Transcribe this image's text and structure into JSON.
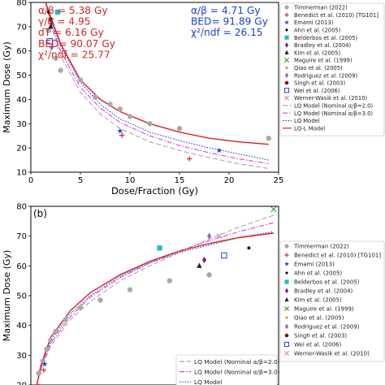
{
  "chart_data": [
    {
      "type": "scatter",
      "panel_label": "",
      "xlabel": "Dose/Fraction (Gy)",
      "ylabel": "Maximum Dose (Gy)",
      "xlim": [
        0,
        25
      ],
      "ylim": [
        10,
        80
      ],
      "xticks": [
        0,
        5,
        10,
        15,
        20,
        25
      ],
      "yticks": [
        10,
        20,
        30,
        40,
        50,
        60,
        70,
        80
      ],
      "x_axis_visible": true,
      "grid": false,
      "legend_position": "right",
      "annotations_left": [
        "α/β = 5.38 Gy",
        "γ/α = 4.95",
        "dT = 6.16 Gy",
        "BED= 90.07 Gy",
        "χ²/ndf = 25.77"
      ],
      "annotations_right": [
        "α/β = 4.71 Gy",
        "BED= 91.89 Gy",
        "χ²/ndf = 26.15"
      ],
      "annotation_colors": {
        "left": "#d62728",
        "right": "#1f3fd6"
      },
      "series": [
        {
          "name": "Timmerman (2022)",
          "marker": "circle",
          "color": "#a9a9a9",
          "points": [
            [
              1.8,
              68.4
            ],
            [
              2.5,
              57
            ],
            [
              3,
              52
            ],
            [
              5,
              48
            ],
            [
              6.5,
              41
            ],
            [
              8,
              38
            ],
            [
              9,
              36
            ],
            [
              10,
              33
            ],
            [
              12,
              30
            ],
            [
              15,
              28
            ],
            [
              24,
              24
            ]
          ]
        },
        {
          "name": "Benedict et al. (2010) [TG101]",
          "marker": "plus",
          "color": "#d62728",
          "points": [
            [
              9.2,
              25.2
            ],
            [
              16,
              15.5
            ]
          ]
        },
        {
          "name": "Emami (2013)",
          "marker": "star",
          "color": "#1f3fd6",
          "points": [
            [
              9,
              27
            ],
            [
              19,
              19
            ]
          ]
        },
        {
          "name": "Ahn et al. (2005)",
          "marker": "dot",
          "color": "#000000",
          "points": [
            [
              1.8,
              76
            ]
          ]
        },
        {
          "name": "Belderbos et al. (2005)",
          "marker": "square",
          "color": "#20c0c0",
          "points": [
            [
              2.7,
              76
            ]
          ]
        },
        {
          "name": "Bradley et al. (2004)",
          "marker": "diamond",
          "color": "#8b1a8b",
          "points": [
            [
              2.1,
              71.5
            ]
          ]
        },
        {
          "name": "Kim et al. (2005)",
          "marker": "triangle",
          "color": "#222222",
          "points": [
            [
              2,
              70
            ]
          ]
        },
        {
          "name": "Maguire et al. (1999)",
          "marker": "x",
          "color": "#2ca02c",
          "points": []
        },
        {
          "name": "Qiao et al. (2005)",
          "marker": "dot",
          "color": "#c8a000",
          "points": []
        },
        {
          "name": "Rodriguez et al. (2009)",
          "marker": "diamond",
          "color": "#9467bd",
          "points": [
            [
              2.1,
              61.5
            ]
          ]
        },
        {
          "name": "Singh et al. (2003)",
          "marker": "pentagon",
          "color": "#7f1010",
          "points": [
            [
              2,
              73
            ]
          ]
        },
        {
          "name": "Wei et al. (2006)",
          "marker": "open-square",
          "color": "#1f3fd6",
          "points": [
            [
              1.9,
              64
            ]
          ]
        },
        {
          "name": "Werner-Wasik et al. (2010)",
          "marker": "x",
          "color": "#e377c2",
          "points": []
        }
      ],
      "curves": [
        {
          "name": "LQ Model (Nominal α/β=2.0)",
          "style": "dashed",
          "color": "#aaaaaa",
          "points": [
            [
              1.5,
              80
            ],
            [
              2,
              71
            ],
            [
              3,
              58
            ],
            [
              5,
              43
            ],
            [
              7,
              34
            ],
            [
              9,
              28
            ],
            [
              12,
              22.5
            ],
            [
              15,
              19
            ],
            [
              18,
              16
            ],
            [
              21,
              13.5
            ],
            [
              24,
              11.5
            ]
          ]
        },
        {
          "name": "LQ Model (Nominal α/β=3.0)",
          "style": "dashdot",
          "color": "#e040e0",
          "points": [
            [
              1.5,
              80
            ],
            [
              2,
              72
            ],
            [
              3,
              60
            ],
            [
              5,
              45
            ],
            [
              7,
              36.5
            ],
            [
              9,
              30.5
            ],
            [
              12,
              25
            ],
            [
              15,
              21
            ],
            [
              18,
              18
            ],
            [
              21,
              15.5
            ],
            [
              24,
              13.5
            ]
          ]
        },
        {
          "name": "LQ Model",
          "style": "dotted",
          "color": "#1f3fd6",
          "points": [
            [
              1.5,
              80
            ],
            [
              2,
              73
            ],
            [
              3,
              62
            ],
            [
              5,
              47
            ],
            [
              7,
              38
            ],
            [
              9,
              32
            ],
            [
              12,
              26.5
            ],
            [
              15,
              23
            ],
            [
              18,
              20
            ],
            [
              21,
              17.5
            ],
            [
              24,
              15
            ]
          ]
        },
        {
          "name": "LQ-L Model",
          "style": "solid",
          "color": "#e02020",
          "points": [
            [
              1.5,
              80
            ],
            [
              2,
              74
            ],
            [
              3,
              63
            ],
            [
              5,
              48
            ],
            [
              7,
              40
            ],
            [
              9,
              35
            ],
            [
              12,
              30
            ],
            [
              15,
              26.5
            ],
            [
              18,
              24
            ],
            [
              21,
              22.5
            ],
            [
              24,
              21.5
            ]
          ]
        }
      ]
    },
    {
      "type": "scatter",
      "panel_label": "(b)",
      "xlabel": "",
      "ylabel": "Maximum Dose (Gy)",
      "xlim": [
        0,
        25
      ],
      "ylim": [
        20,
        80
      ],
      "xticks": [],
      "yticks": [
        20,
        30,
        40,
        50,
        60,
        70,
        80
      ],
      "x_axis_visible": false,
      "grid": false,
      "legend_position": "right",
      "annotations_left": [],
      "annotations_right": [],
      "series": [
        {
          "name": "Timmerman (2022)",
          "marker": "circle",
          "color": "#a9a9a9",
          "points": [
            [
              0.8,
              24
            ],
            [
              1.2,
              28
            ],
            [
              1.6,
              32
            ],
            [
              2,
              35
            ],
            [
              2.5,
              38
            ],
            [
              3.5,
              42
            ],
            [
              5,
              46
            ],
            [
              7,
              48.5
            ],
            [
              10,
              52
            ],
            [
              14,
              55
            ],
            [
              18,
              57
            ]
          ]
        },
        {
          "name": "Benedict et al. (2010) [TG101]",
          "marker": "plus",
          "color": "#d62728",
          "points": [
            [
              0.8,
              19.5
            ],
            [
              1.3,
              25
            ]
          ]
        },
        {
          "name": "Emami (2013)",
          "marker": "star",
          "color": "#1f3fd6",
          "points": [
            [
              0.7,
              19
            ],
            [
              1.4,
              27
            ]
          ]
        },
        {
          "name": "Ahn et al. (2005)",
          "marker": "dot",
          "color": "#000000",
          "points": [
            [
              22,
              66
            ]
          ]
        },
        {
          "name": "Belderbos et al. (2005)",
          "marker": "square",
          "color": "#20c0c0",
          "points": [
            [
              13,
              66
            ]
          ]
        },
        {
          "name": "Bradley et al. (2004)",
          "marker": "diamond",
          "color": "#8b1a8b",
          "points": [
            [
              17.5,
              62
            ]
          ]
        },
        {
          "name": "Kim et al. (2005)",
          "marker": "triangle",
          "color": "#222222",
          "points": [
            [
              17,
              60
            ]
          ]
        },
        {
          "name": "Maguire et al. (1999)",
          "marker": "x",
          "color": "#2ca02c",
          "points": [
            [
              24.5,
              79
            ]
          ]
        },
        {
          "name": "Qiao et al. (2005)",
          "marker": "dot",
          "color": "#c8a000",
          "points": []
        },
        {
          "name": "Rodriguez et al. (2009)",
          "marker": "diamond",
          "color": "#9467bd",
          "points": [
            [
              18,
              70
            ]
          ]
        },
        {
          "name": "Singh et al. (2003)",
          "marker": "pentagon",
          "color": "#7f1010",
          "points": []
        },
        {
          "name": "Wei et al. (2006)",
          "marker": "open-square",
          "color": "#1f3fd6",
          "points": [
            [
              19.5,
              63.5
            ]
          ]
        },
        {
          "name": "Werner-Wasik et al. (2010)",
          "marker": "x",
          "color": "#e377c2",
          "points": [
            [
              19,
              70
            ]
          ]
        }
      ],
      "curves": [
        {
          "name": "LQ Model (Nominal α/β=2.0)",
          "style": "dashed",
          "color": "#aaaaaa",
          "points": [
            [
              0.6,
              20
            ],
            [
              1,
              25
            ],
            [
              2,
              33
            ],
            [
              4,
              42
            ],
            [
              6,
              48
            ],
            [
              9,
              55
            ],
            [
              12,
              60
            ],
            [
              15,
              64.5
            ],
            [
              18,
              69
            ],
            [
              21,
              73
            ],
            [
              24.5,
              77
            ]
          ]
        },
        {
          "name": "LQ Model (Nominal α/β=3.0)",
          "style": "dashdot",
          "color": "#e040e0",
          "points": [
            [
              0.6,
              20
            ],
            [
              1,
              25.5
            ],
            [
              2,
              34
            ],
            [
              4,
              43
            ],
            [
              6,
              49.5
            ],
            [
              9,
              56
            ],
            [
              12,
              61
            ],
            [
              15,
              65
            ],
            [
              18,
              68.5
            ],
            [
              21,
              71.5
            ],
            [
              24.5,
              74.5
            ]
          ]
        },
        {
          "name": "LQ Model",
          "style": "dotted",
          "color": "#1f3fd6",
          "points": [
            [
              0.6,
              20
            ],
            [
              1,
              26
            ],
            [
              2,
              35
            ],
            [
              4,
              44
            ],
            [
              6,
              50
            ],
            [
              9,
              56.5
            ],
            [
              12,
              61
            ],
            [
              15,
              64.5
            ],
            [
              18,
              67
            ],
            [
              21,
              69.5
            ],
            [
              24.5,
              71.5
            ]
          ]
        },
        {
          "name": "LQ-L Model",
          "style": "solid",
          "color": "#e02020",
          "points": [
            [
              0.6,
              20
            ],
            [
              1,
              26.5
            ],
            [
              2,
              36
            ],
            [
              4,
              45
            ],
            [
              6,
              51
            ],
            [
              9,
              57
            ],
            [
              12,
              61.5
            ],
            [
              15,
              65
            ],
            [
              18,
              67.5
            ],
            [
              21,
              69.5
            ],
            [
              24.5,
              71
            ]
          ]
        }
      ]
    }
  ]
}
